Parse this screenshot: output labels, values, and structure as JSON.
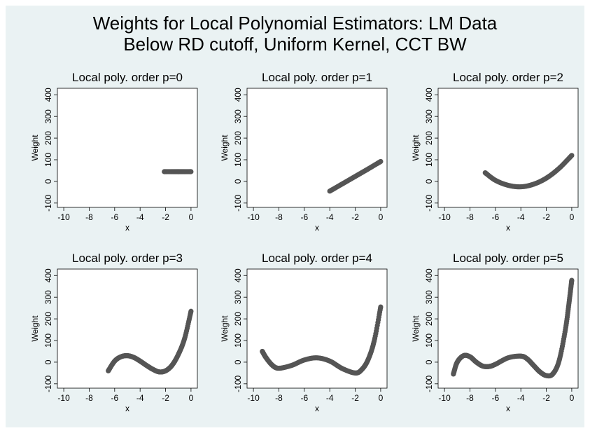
{
  "title": {
    "line1": "Weights for Local Polynomial Estimators: LM Data",
    "line2": "Below RD cutoff, Uniform Kernel, CCT BW"
  },
  "colors": {
    "background": "#eaf2f3",
    "plot_area": "#ffffff",
    "points": "#555555"
  },
  "chart_data": [
    {
      "type": "scatter",
      "title": "Local poly. order p=0",
      "xlabel": "x",
      "ylabel": "Weight",
      "xlim": [
        -10.5,
        0.5
      ],
      "ylim": [
        -120,
        430
      ],
      "xticks": [
        -10,
        -8,
        -6,
        -4,
        -2,
        0
      ],
      "yticks": [
        -100,
        0,
        100,
        200,
        300,
        400
      ],
      "grid": false,
      "series": [
        {
          "points": [
            [
              -2.1,
              45
            ],
            [
              -1.5,
              45
            ],
            [
              -1.0,
              45
            ],
            [
              -0.5,
              45
            ],
            [
              0.0,
              45
            ]
          ]
        }
      ]
    },
    {
      "type": "scatter",
      "title": "Local poly. order p=1",
      "xlabel": "x",
      "ylabel": "Weight",
      "xlim": [
        -10.5,
        0.5
      ],
      "ylim": [
        -120,
        430
      ],
      "xticks": [
        -10,
        -8,
        -6,
        -4,
        -2,
        0
      ],
      "yticks": [
        -100,
        0,
        100,
        200,
        300,
        400
      ],
      "grid": false,
      "series": [
        {
          "points": [
            [
              -4.0,
              -45
            ],
            [
              -3.0,
              -11
            ],
            [
              -2.0,
              23
            ],
            [
              -1.0,
              57
            ],
            [
              0.0,
              92
            ]
          ]
        }
      ]
    },
    {
      "type": "scatter",
      "title": "Local poly. order p=2",
      "xlabel": "x",
      "ylabel": "Weight",
      "xlim": [
        -10.5,
        0.5
      ],
      "ylim": [
        -120,
        430
      ],
      "xticks": [
        -10,
        -8,
        -6,
        -4,
        -2,
        0
      ],
      "yticks": [
        -100,
        0,
        100,
        200,
        300,
        400
      ],
      "grid": false,
      "series": [
        {
          "points": [
            [
              -6.8,
              40
            ],
            [
              -6.0,
              5
            ],
            [
              -5.0,
              -18
            ],
            [
              -4.0,
              -25
            ],
            [
              -3.0,
              -13
            ],
            [
              -2.0,
              15
            ],
            [
              -1.0,
              60
            ],
            [
              0.0,
              120
            ]
          ]
        }
      ]
    },
    {
      "type": "scatter",
      "title": "Local poly. order p=3",
      "xlabel": "x",
      "ylabel": "Weight",
      "xlim": [
        -10.5,
        0.5
      ],
      "ylim": [
        -120,
        430
      ],
      "xticks": [
        -10,
        -8,
        -6,
        -4,
        -2,
        0
      ],
      "yticks": [
        -100,
        0,
        100,
        200,
        300,
        400
      ],
      "grid": false,
      "series": [
        {
          "points": [
            [
              -6.5,
              -40
            ],
            [
              -6.0,
              5
            ],
            [
              -5.5,
              25
            ],
            [
              -5.0,
              30
            ],
            [
              -4.5,
              22
            ],
            [
              -4.0,
              5
            ],
            [
              -3.5,
              -15
            ],
            [
              -3.0,
              -33
            ],
            [
              -2.5,
              -45
            ],
            [
              -2.0,
              -40
            ],
            [
              -1.5,
              -15
            ],
            [
              -1.0,
              35
            ],
            [
              -0.5,
              110
            ],
            [
              0.0,
              235
            ]
          ]
        }
      ]
    },
    {
      "type": "scatter",
      "title": "Local poly. order p=4",
      "xlabel": "x",
      "ylabel": "Weight",
      "xlim": [
        -10.5,
        0.5
      ],
      "ylim": [
        -120,
        430
      ],
      "xticks": [
        -10,
        -8,
        -6,
        -4,
        -2,
        0
      ],
      "yticks": [
        -100,
        0,
        100,
        200,
        300,
        400
      ],
      "grid": false,
      "series": [
        {
          "points": [
            [
              -9.3,
              50
            ],
            [
              -9.0,
              20
            ],
            [
              -8.5,
              -15
            ],
            [
              -8.0,
              -28
            ],
            [
              -7.0,
              -15
            ],
            [
              -6.0,
              10
            ],
            [
              -5.0,
              20
            ],
            [
              -4.0,
              5
            ],
            [
              -3.0,
              -30
            ],
            [
              -2.0,
              -50
            ],
            [
              -1.5,
              -35
            ],
            [
              -1.0,
              10
            ],
            [
              -0.5,
              100
            ],
            [
              0.0,
              255
            ]
          ]
        }
      ]
    },
    {
      "type": "scatter",
      "title": "Local poly. order p=5",
      "xlabel": "x",
      "ylabel": "Weight",
      "xlim": [
        -10.5,
        0.5
      ],
      "ylim": [
        -120,
        430
      ],
      "xticks": [
        -10,
        -8,
        -6,
        -4,
        -2,
        0
      ],
      "yticks": [
        -100,
        0,
        100,
        200,
        300,
        400
      ],
      "grid": false,
      "series": [
        {
          "points": [
            [
              -9.3,
              -55
            ],
            [
              -9.0,
              0
            ],
            [
              -8.5,
              30
            ],
            [
              -8.0,
              25
            ],
            [
              -7.5,
              0
            ],
            [
              -7.0,
              -18
            ],
            [
              -6.5,
              -20
            ],
            [
              -6.0,
              -10
            ],
            [
              -5.0,
              20
            ],
            [
              -4.0,
              28
            ],
            [
              -3.5,
              15
            ],
            [
              -3.0,
              -15
            ],
            [
              -2.5,
              -45
            ],
            [
              -2.0,
              -62
            ],
            [
              -1.5,
              -55
            ],
            [
              -1.0,
              5
            ],
            [
              -0.5,
              150
            ],
            [
              -0.2,
              280
            ],
            [
              0.0,
              378
            ]
          ]
        }
      ]
    }
  ]
}
